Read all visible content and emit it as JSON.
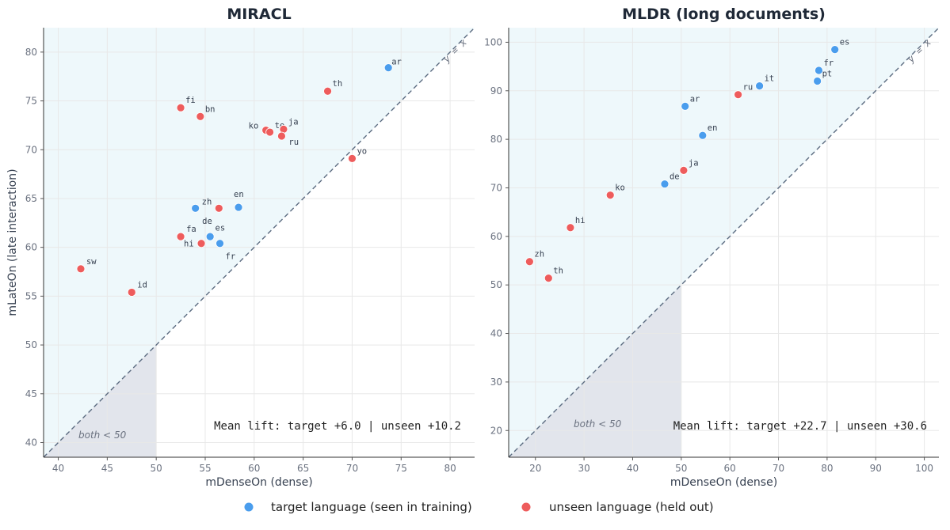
{
  "colors": {
    "target": "#4a9ded",
    "unseen": "#ee5c5c",
    "above": "#eef8fb",
    "both": "#e2e5ec",
    "grid": "#e8e8e8",
    "ref": "#5b6b80"
  },
  "legend": {
    "target": "target language  (seen in training)",
    "unseen": "unseen language  (held out)"
  },
  "chart_data": [
    {
      "type": "scatter",
      "title": "MIRACL",
      "xlabel": "mDenseOn  (dense)",
      "ylabel": "mLateOn  (late interaction)",
      "xlim": [
        38.5,
        82.5
      ],
      "ylim": [
        38.5,
        82.5
      ],
      "xticks": [
        40,
        45,
        50,
        55,
        60,
        65,
        70,
        75,
        80
      ],
      "yticks": [
        40,
        45,
        50,
        55,
        60,
        65,
        70,
        75,
        80
      ],
      "grid": true,
      "reference_line": "y = x",
      "both_region_label": "both < 50",
      "both_threshold": 50,
      "annotation": "Mean lift:  target +6.0 |  unseen +10.2",
      "points": [
        {
          "label": "ar",
          "x": 73.7,
          "y": 78.4,
          "group": "target",
          "dx": 4,
          "dy": -4
        },
        {
          "label": "th",
          "x": 67.5,
          "y": 76.0,
          "group": "unseen",
          "dx": 6,
          "dy": -6
        },
        {
          "label": "fi",
          "x": 52.5,
          "y": 74.3,
          "group": "unseen",
          "dx": 6,
          "dy": -6
        },
        {
          "label": "bn",
          "x": 54.5,
          "y": 73.4,
          "group": "unseen",
          "dx": 6,
          "dy": -6
        },
        {
          "label": "ko",
          "x": 61.2,
          "y": 72.0,
          "group": "unseen",
          "dx": -22,
          "dy": -2
        },
        {
          "label": "te",
          "x": 61.6,
          "y": 71.8,
          "group": "unseen",
          "dx": 6,
          "dy": -5
        },
        {
          "label": "ja",
          "x": 63.0,
          "y": 72.1,
          "group": "unseen",
          "dx": 6,
          "dy": -6
        },
        {
          "label": "ru",
          "x": 62.8,
          "y": 71.4,
          "group": "unseen",
          "dx": 9,
          "dy": 11
        },
        {
          "label": "yo",
          "x": 70.0,
          "y": 69.1,
          "group": "unseen",
          "dx": 6,
          "dy": -6
        },
        {
          "label": "zh",
          "x": 54.0,
          "y": 64.0,
          "group": "target",
          "dx": 8,
          "dy": -5
        },
        {
          "label": "en",
          "x": 58.4,
          "y": 64.1,
          "group": "target",
          "dx": -6,
          "dy": -13
        },
        {
          "label": "ja",
          "x": 56.4,
          "y": 64.0,
          "group": "unseen",
          "dx": 0,
          "dy": 0,
          "hide_label": true
        },
        {
          "label": "de",
          "x": 55.5,
          "y": 61.1,
          "group": "target",
          "dx": -10,
          "dy": -16
        },
        {
          "label": "fa",
          "x": 52.5,
          "y": 61.1,
          "group": "unseen",
          "dx": 7,
          "dy": -6
        },
        {
          "label": "es",
          "x": 56.5,
          "y": 60.4,
          "group": "target",
          "dx": -6,
          "dy": -16
        },
        {
          "label": "hi",
          "x": 54.6,
          "y": 60.4,
          "group": "unseen",
          "dx": -22,
          "dy": 4
        },
        {
          "label": "fr",
          "x": 56.5,
          "y": 60.4,
          "group": "target",
          "dx": 7,
          "dy": 20,
          "hide_dot": true
        },
        {
          "label": "sw",
          "x": 42.3,
          "y": 57.8,
          "group": "unseen",
          "dx": 7,
          "dy": -6
        },
        {
          "label": "id",
          "x": 47.5,
          "y": 55.4,
          "group": "unseen",
          "dx": 7,
          "dy": -6
        }
      ]
    },
    {
      "type": "scatter",
      "title": "MLDR (long documents)",
      "xlabel": "mDenseOn  (dense)",
      "ylabel": "",
      "xlim": [
        14.5,
        103
      ],
      "ylim": [
        14.5,
        103
      ],
      "xticks": [
        20,
        30,
        40,
        50,
        60,
        70,
        80,
        90,
        100
      ],
      "yticks": [
        20,
        30,
        40,
        50,
        60,
        70,
        80,
        90,
        100
      ],
      "grid": true,
      "reference_line": "y = x",
      "both_region_label": "both < 50",
      "both_threshold": 50,
      "annotation": "Mean lift:  target +22.7 |  unseen +30.6",
      "points": [
        {
          "label": "es",
          "x": 81.6,
          "y": 98.5,
          "group": "target",
          "dx": 6,
          "dy": -6
        },
        {
          "label": "fr",
          "x": 78.3,
          "y": 94.2,
          "group": "target",
          "dx": 6,
          "dy": -6
        },
        {
          "label": "pt",
          "x": 78.0,
          "y": 92.0,
          "group": "target",
          "dx": 6,
          "dy": -6
        },
        {
          "label": "it",
          "x": 66.1,
          "y": 91.0,
          "group": "target",
          "dx": 6,
          "dy": -6
        },
        {
          "label": "ru",
          "x": 61.7,
          "y": 89.2,
          "group": "unseen",
          "dx": 6,
          "dy": -6
        },
        {
          "label": "ar",
          "x": 50.8,
          "y": 86.8,
          "group": "target",
          "dx": 6,
          "dy": -6
        },
        {
          "label": "en",
          "x": 54.4,
          "y": 80.8,
          "group": "target",
          "dx": 6,
          "dy": -6
        },
        {
          "label": "ja",
          "x": 50.5,
          "y": 73.6,
          "group": "unseen",
          "dx": 6,
          "dy": -6
        },
        {
          "label": "de",
          "x": 46.6,
          "y": 70.8,
          "group": "target",
          "dx": 6,
          "dy": -6
        },
        {
          "label": "ko",
          "x": 35.4,
          "y": 68.5,
          "group": "unseen",
          "dx": 6,
          "dy": -6
        },
        {
          "label": "hi",
          "x": 27.2,
          "y": 61.8,
          "group": "unseen",
          "dx": 6,
          "dy": -6
        },
        {
          "label": "zh",
          "x": 18.8,
          "y": 54.8,
          "group": "unseen",
          "dx": 6,
          "dy": -6
        },
        {
          "label": "th",
          "x": 22.7,
          "y": 51.4,
          "group": "unseen",
          "dx": 6,
          "dy": -6
        }
      ]
    }
  ]
}
